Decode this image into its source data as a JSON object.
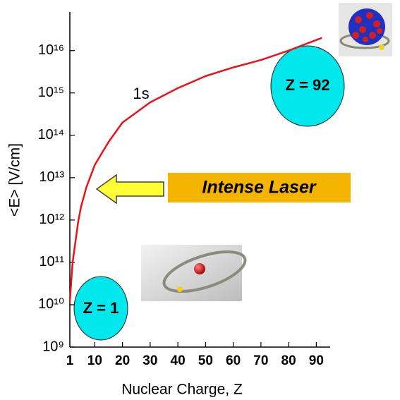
{
  "chart_data": {
    "type": "line",
    "y_label": "<E>  [V/cm]",
    "x_label": "Nuclear Charge, Z",
    "annotations": [
      "1s",
      "Z = 92",
      "Z = 1",
      "Intense Laser"
    ],
    "x": [
      1,
      2,
      3,
      4,
      5,
      7,
      10,
      15,
      20,
      30,
      40,
      50,
      60,
      70,
      80,
      92
    ],
    "values": [
      12000000000,
      100000000000,
      300000000000,
      900000000000,
      2000000000000,
      6000000000000,
      20000000000000,
      70000000000000,
      200000000000000,
      600000000000000,
      1300000000000000,
      2500000000000000,
      4000000000000000,
      6000000000000000,
      10000000000000000,
      20000000000000000
    ],
    "color": "#e8141c",
    "log_y": true,
    "xlim": [
      1,
      95
    ],
    "ylim": [
      1000000000,
      60000000000000000
    ],
    "xticks": [
      1,
      10,
      20,
      30,
      40,
      50,
      60,
      70,
      80,
      90
    ],
    "yticks": [
      {
        "value": 1000000000,
        "label": "10⁹"
      },
      {
        "value": 10000000000,
        "label": "10¹⁰"
      },
      {
        "value": 100000000000,
        "label": "10¹¹"
      },
      {
        "value": 1000000000000,
        "label": "10¹²"
      },
      {
        "value": 10000000000000,
        "label": "10¹³"
      },
      {
        "value": 100000000000000,
        "label": "10¹⁴"
      },
      {
        "value": 1000000000000000,
        "label": "10¹⁵"
      },
      {
        "value": 10000000000000000,
        "label": "10¹⁶"
      }
    ]
  }
}
